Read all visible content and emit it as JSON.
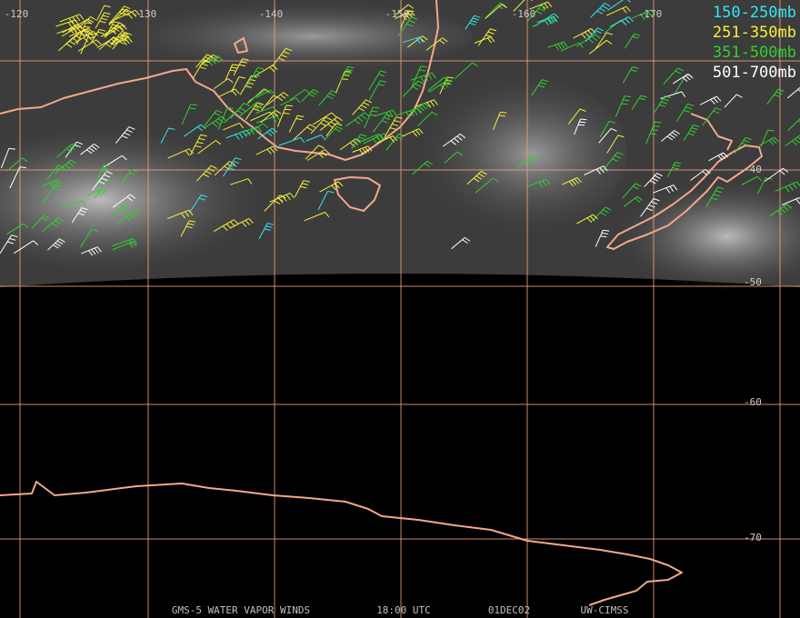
{
  "longitude_labels": [
    "-120",
    "-130",
    "-140",
    "-150",
    "-160",
    "-170"
  ],
  "latitude_labels": [
    "-40",
    "-50",
    "-60",
    "-70"
  ],
  "legend": [
    {
      "label": "150-250mb",
      "color": "#33e6f0"
    },
    {
      "label": "251-350mb",
      "color": "#f5f03a"
    },
    {
      "label": "351-500mb",
      "color": "#30d030"
    },
    {
      "label": "501-700mb",
      "color": "#ffffff"
    }
  ],
  "footer": {
    "product": "GMS-5 WATER VAPOR WINDS",
    "time": "18:00 UTC",
    "date": "01DEC02",
    "source": "UW-CIMSS"
  }
}
